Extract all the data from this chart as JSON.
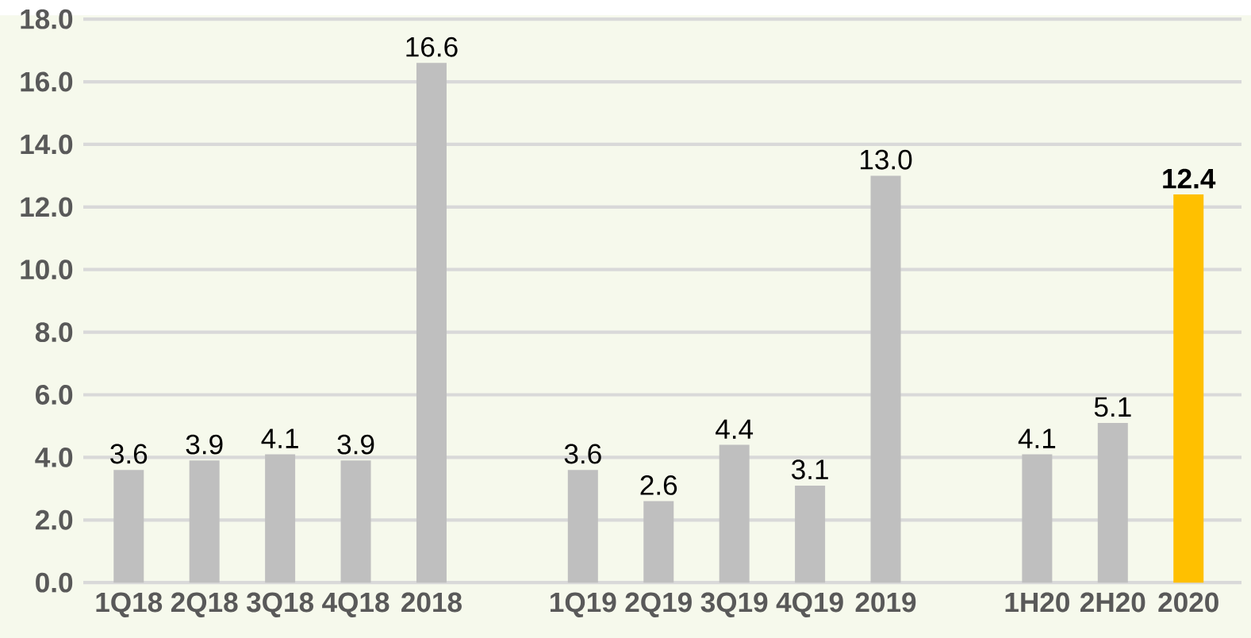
{
  "chart_data": {
    "type": "bar",
    "categories": [
      "1Q18",
      "2Q18",
      "3Q18",
      "4Q18",
      "2018",
      null,
      "1Q19",
      "2Q19",
      "3Q19",
      "4Q19",
      "2019",
      null,
      "1H20",
      "2H20",
      "2020"
    ],
    "values": [
      3.6,
      3.9,
      4.1,
      3.9,
      16.6,
      null,
      3.6,
      2.6,
      4.4,
      3.1,
      13.0,
      null,
      4.1,
      5.1,
      12.4
    ],
    "colors": [
      "#bfbfbf",
      "#bfbfbf",
      "#bfbfbf",
      "#bfbfbf",
      "#bfbfbf",
      null,
      "#bfbfbf",
      "#bfbfbf",
      "#bfbfbf",
      "#bfbfbf",
      "#bfbfbf",
      null,
      "#bfbfbf",
      "#bfbfbf",
      "#ffc000"
    ],
    "value_labels": [
      "3.6",
      "3.9",
      "4.1",
      "3.9",
      "16.6",
      null,
      "3.6",
      "2.6",
      "4.4",
      "3.1",
      "13.0",
      null,
      "4.1",
      "5.1",
      "**12.4**"
    ],
    "ylim": [
      0,
      18
    ],
    "yticks": [
      {
        "value": 0,
        "label": "0.0"
      },
      {
        "value": 2,
        "label": "2.0"
      },
      {
        "value": 4,
        "label": "4.0"
      },
      {
        "value": 6,
        "label": "6.0"
      },
      {
        "value": 8,
        "label": "8.0"
      },
      {
        "value": 10,
        "label": "10.0"
      },
      {
        "value": 12,
        "label": "12.0"
      },
      {
        "value": 14,
        "label": "14.0"
      },
      {
        "value": 16,
        "label": "16.0"
      },
      {
        "value": 18,
        "label": "18.0"
      }
    ],
    "grid": "y"
  }
}
